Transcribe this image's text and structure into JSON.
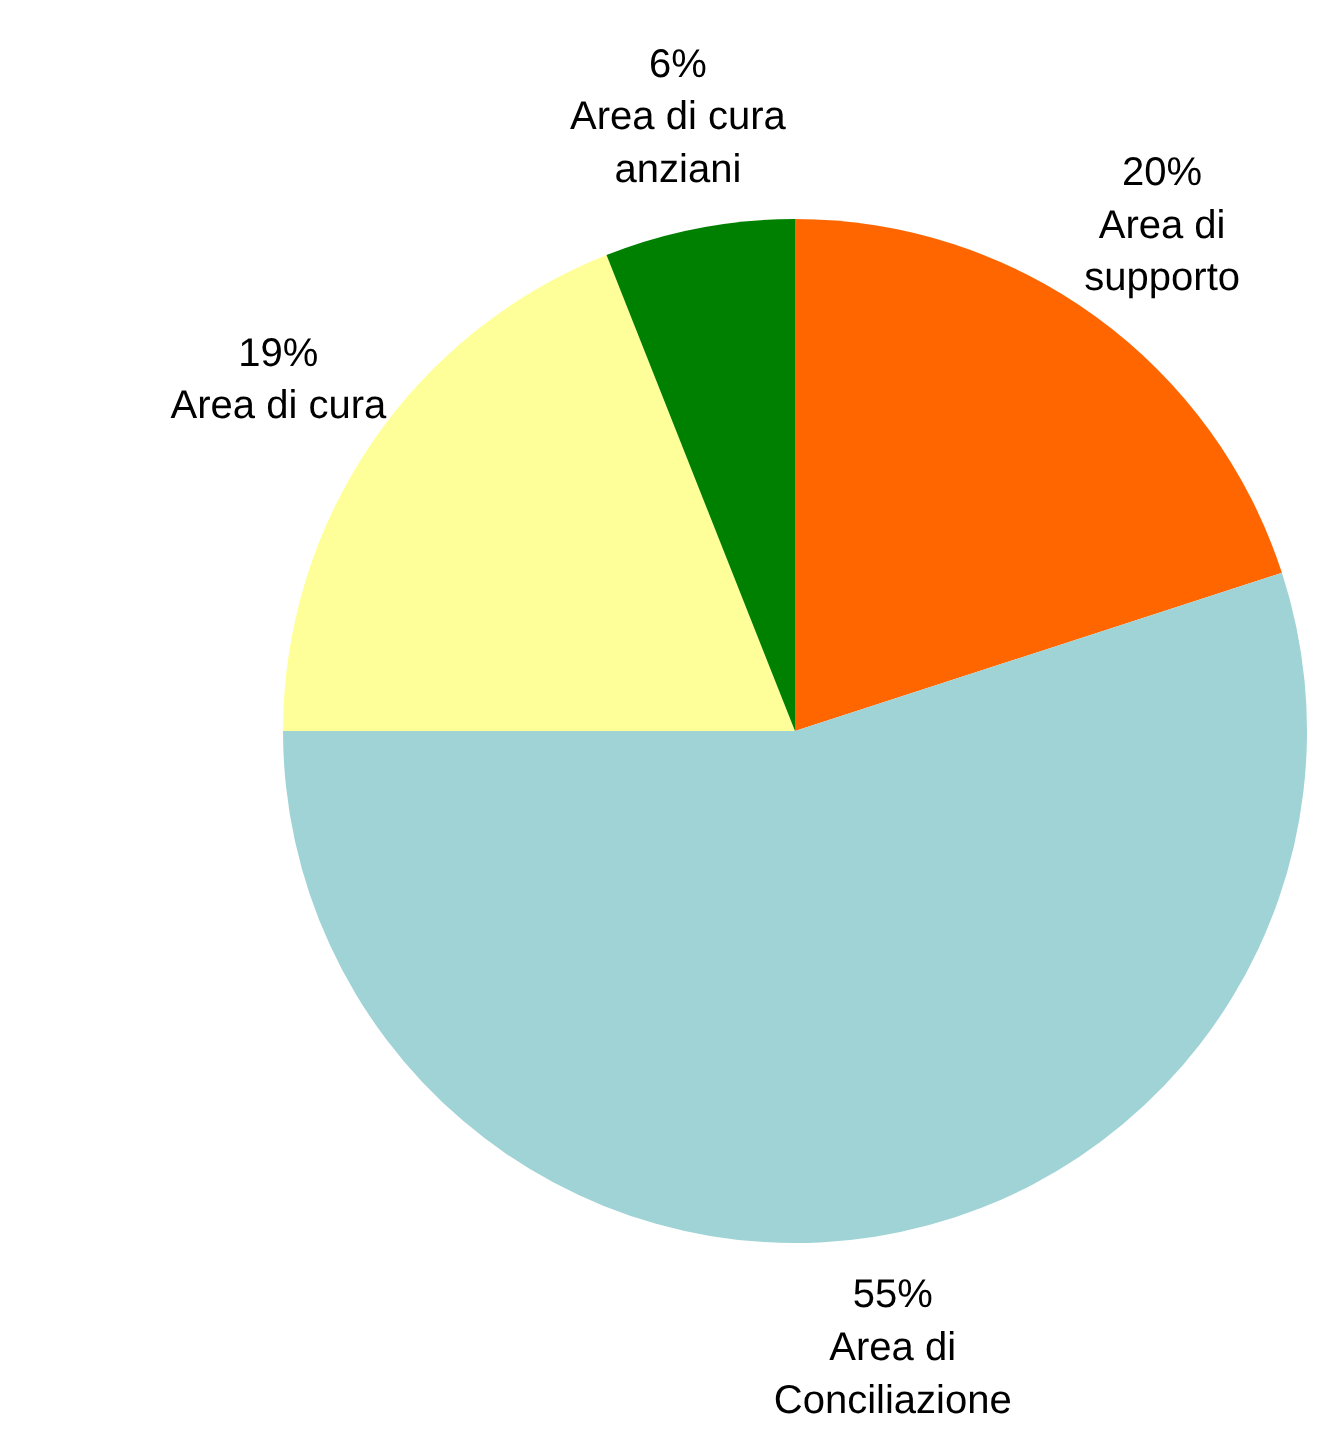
{
  "chart_data": {
    "type": "pie",
    "categories": [
      "Area di\nsupporto",
      "Area di\nConciliazione",
      "Area di cura",
      "Area di cura\nanziani"
    ],
    "values": [
      20,
      55,
      19,
      6
    ],
    "value_labels": [
      "20%",
      "55%",
      "19%",
      "6%"
    ],
    "colors": [
      "#ff6600",
      "#a0d3d6",
      "#ffff99",
      "#008000"
    ]
  }
}
